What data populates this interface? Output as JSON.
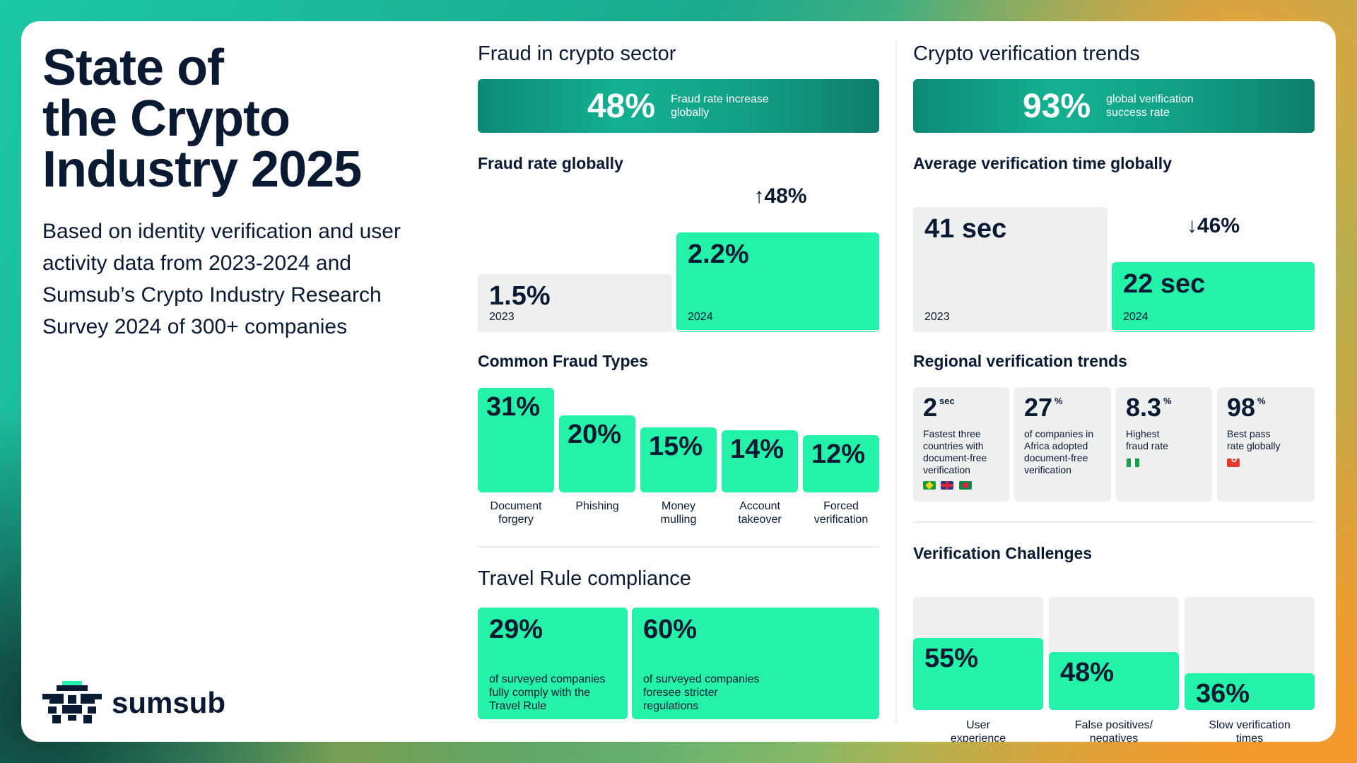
{
  "header": {
    "title": "State of\nthe Crypto\nIndustry 2025",
    "intro": "Based on identity verification and user activity data from 2023-2024 and Sumsub’s Crypto Industry Research Survey 2024 of 300+ companies"
  },
  "logo": {
    "text": "sumsub"
  },
  "fraud_sector": {
    "title": "Fraud in crypto sector",
    "banner_value": "48%",
    "banner_label": "Fraud rate increase globally",
    "subtitle": "Fraud rate globally",
    "delta": "48%",
    "delta_direction": "up",
    "bars": [
      {
        "year": "2023",
        "label": "1.5%",
        "value": 1.5
      },
      {
        "year": "2024",
        "label": "2.2%",
        "value": 2.2
      }
    ]
  },
  "fraud_types": {
    "title": "Common Fraud Types",
    "items": [
      {
        "label": "31%",
        "value": 31,
        "name": "Document\nforgery"
      },
      {
        "label": "20%",
        "value": 20,
        "name": "Phishing"
      },
      {
        "label": "15%",
        "value": 15,
        "name": "Money\nmulling"
      },
      {
        "label": "14%",
        "value": 14,
        "name": "Account\ntakeover"
      },
      {
        "label": "12%",
        "value": 12,
        "name": "Forced\nverification"
      }
    ]
  },
  "travel_rule": {
    "title": "Travel Rule compliance",
    "items": [
      {
        "value": "29%",
        "desc": "of surveyed companies\nfully comply with the\nTravel Rule"
      },
      {
        "value": "60%",
        "desc": "of surveyed companies\nforesee stricter\nregulations"
      }
    ]
  },
  "verification_trends": {
    "title": "Crypto verification trends",
    "banner_value": "93%",
    "banner_label": "global verification success rate",
    "subtitle": "Average verification time globally",
    "delta": "46%",
    "delta_direction": "down",
    "bars": [
      {
        "year": "2023",
        "label": "41 sec",
        "value": 41
      },
      {
        "year": "2024",
        "label": "22 sec",
        "value": 22
      }
    ]
  },
  "regional": {
    "title": "Regional verification trends",
    "tiles": [
      {
        "value": "2",
        "unit": "sec",
        "desc": "Fastest three\ncountries with\ndocument-free\nverification",
        "flags": [
          "flag-brazil",
          "flag-uk",
          "flag-bangladesh"
        ]
      },
      {
        "value": "27",
        "unit": "%",
        "desc": "of companies in\nAfrica adopted\ndocument-free\nverification",
        "flags": []
      },
      {
        "value": "8.3",
        "unit": "%",
        "desc": "Highest\nfraud rate",
        "flags": [
          "flag-nigeria"
        ]
      },
      {
        "value": "98",
        "unit": "%",
        "desc": "Best pass\nrate globally",
        "flags": [
          "flag-hong-kong"
        ]
      }
    ]
  },
  "challenges": {
    "title": "Verification Challenges",
    "items": [
      {
        "label": "55%",
        "value": 55,
        "name": "User\nexperience"
      },
      {
        "label": "48%",
        "value": 48,
        "name": "False positives/\nnegatives"
      },
      {
        "label": "36%",
        "value": 36,
        "name": "Slow verification\ntimes"
      }
    ]
  },
  "colors": {
    "accent": "#24f2a9",
    "panel": "#eef0f0",
    "text": "#0b1a33",
    "banner": "#12a187"
  },
  "chart_data": [
    {
      "type": "bar",
      "title": "Fraud rate globally",
      "categories": [
        "2023",
        "2024"
      ],
      "values": [
        1.5,
        2.2
      ],
      "unit": "%"
    },
    {
      "type": "bar",
      "title": "Common Fraud Types",
      "categories": [
        "Document forgery",
        "Phishing",
        "Money mulling",
        "Account takeover",
        "Forced verification"
      ],
      "values": [
        31,
        20,
        15,
        14,
        12
      ],
      "unit": "%"
    },
    {
      "type": "bar",
      "title": "Average verification time globally",
      "categories": [
        "2023",
        "2024"
      ],
      "values": [
        41,
        22
      ],
      "unit": "sec"
    },
    {
      "type": "bar",
      "title": "Verification Challenges",
      "categories": [
        "User experience",
        "False positives/negatives",
        "Slow verification times"
      ],
      "values": [
        55,
        48,
        36
      ],
      "unit": "%"
    }
  ]
}
